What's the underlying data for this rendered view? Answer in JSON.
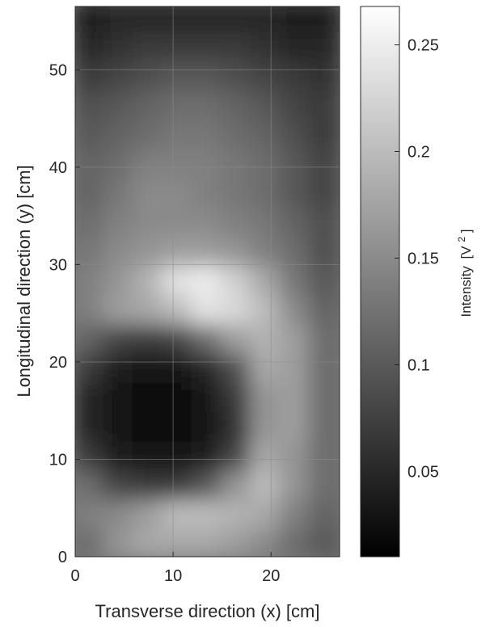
{
  "chart_data": {
    "type": "heatmap",
    "xlabel": "Transverse direction (x) [cm]",
    "ylabel": "Longitudinal direction (y) [cm]",
    "xlim": [
      0,
      27
    ],
    "ylim": [
      0,
      56.5
    ],
    "x_ticks": [
      0,
      10,
      20
    ],
    "y_ticks": [
      0,
      10,
      20,
      30,
      40,
      50
    ],
    "grid": true,
    "colormap": "gray",
    "colorbar": {
      "label": "Intensity",
      "unit": "[V",
      "unit_sup": "2",
      "unit_end": "]",
      "range": [
        0.01,
        0.268
      ],
      "ticks": [
        0.05,
        0.1,
        0.15,
        0.2,
        0.25
      ],
      "tick_labels": [
        "0.05",
        "0.1",
        "0.15",
        "0.2",
        "0.25"
      ]
    },
    "intensity_grid": {
      "x_centers": [
        1.5,
        4.5,
        7.5,
        10.5,
        13.5,
        16.5,
        19.5,
        22.5,
        25.5
      ],
      "y_centers": [
        1.5,
        4.5,
        7.5,
        10.5,
        13.5,
        16.5,
        19.5,
        22.5,
        25.5,
        28.5,
        31.5,
        34.5,
        37.5,
        40.5,
        43.5,
        46.5,
        49.5,
        52.5,
        55.5
      ],
      "values": [
        [
          0.12,
          0.16,
          0.18,
          0.18,
          0.18,
          0.17,
          0.15,
          0.12,
          0.1
        ],
        [
          0.14,
          0.15,
          0.17,
          0.2,
          0.2,
          0.19,
          0.18,
          0.14,
          0.11
        ],
        [
          0.12,
          0.08,
          0.07,
          0.07,
          0.1,
          0.16,
          0.2,
          0.16,
          0.12
        ],
        [
          0.07,
          0.04,
          0.03,
          0.03,
          0.04,
          0.08,
          0.18,
          0.16,
          0.12
        ],
        [
          0.05,
          0.03,
          0.02,
          0.02,
          0.03,
          0.06,
          0.16,
          0.17,
          0.12
        ],
        [
          0.05,
          0.03,
          0.02,
          0.02,
          0.03,
          0.07,
          0.16,
          0.17,
          0.12
        ],
        [
          0.07,
          0.04,
          0.03,
          0.03,
          0.05,
          0.09,
          0.18,
          0.17,
          0.12
        ],
        [
          0.11,
          0.08,
          0.07,
          0.08,
          0.12,
          0.17,
          0.19,
          0.17,
          0.12
        ],
        [
          0.14,
          0.17,
          0.18,
          0.2,
          0.24,
          0.23,
          0.2,
          0.15,
          0.11
        ],
        [
          0.14,
          0.16,
          0.19,
          0.24,
          0.25,
          0.22,
          0.18,
          0.13,
          0.1
        ],
        [
          0.13,
          0.15,
          0.16,
          0.17,
          0.17,
          0.16,
          0.14,
          0.12,
          0.09
        ],
        [
          0.12,
          0.14,
          0.15,
          0.15,
          0.15,
          0.14,
          0.13,
          0.11,
          0.09
        ],
        [
          0.11,
          0.13,
          0.15,
          0.15,
          0.14,
          0.13,
          0.12,
          0.1,
          0.08
        ],
        [
          0.11,
          0.12,
          0.14,
          0.14,
          0.14,
          0.13,
          0.12,
          0.1,
          0.08
        ],
        [
          0.1,
          0.11,
          0.12,
          0.13,
          0.13,
          0.12,
          0.11,
          0.09,
          0.07
        ],
        [
          0.09,
          0.1,
          0.11,
          0.12,
          0.12,
          0.11,
          0.1,
          0.08,
          0.07
        ],
        [
          0.07,
          0.08,
          0.09,
          0.1,
          0.1,
          0.09,
          0.08,
          0.07,
          0.06
        ],
        [
          0.05,
          0.06,
          0.07,
          0.07,
          0.07,
          0.07,
          0.06,
          0.05,
          0.05
        ],
        [
          0.04,
          0.05,
          0.05,
          0.05,
          0.05,
          0.05,
          0.05,
          0.04,
          0.04
        ]
      ]
    }
  }
}
